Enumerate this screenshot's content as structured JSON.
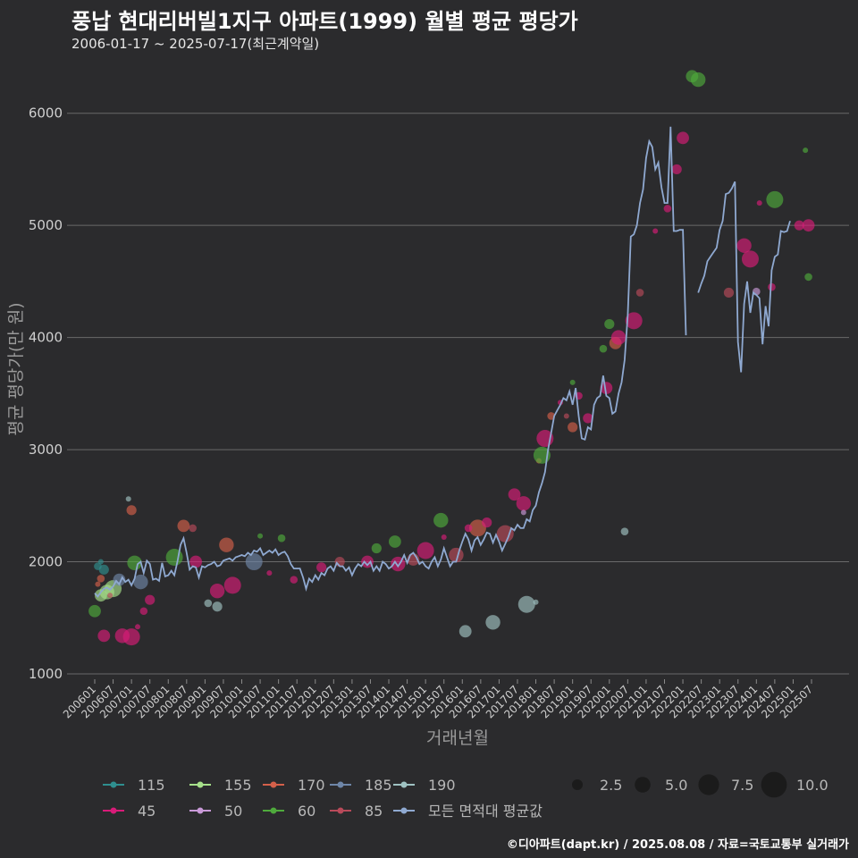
{
  "title": "풍납 현대리버빌1지구 아파트(1999) 월별 평균 평당가",
  "subtitle": "2006-01-17 ~ 2025-07-17(최근계약일)",
  "credit": "©디아파트(dapt.kr) / 2025.08.08 / 자료=국토교통부 실거래가",
  "colors": {
    "background": "#2b2b2d",
    "grid": "#6a6a6a",
    "avg_line": "#8fa9d1"
  },
  "chart_data": {
    "type": "scatter",
    "xlabel": "거래년월",
    "ylabel": "평균 평당가(만 원)",
    "ylim": [
      1000,
      6500
    ],
    "yticks": [
      1000,
      2000,
      3000,
      4000,
      5000,
      6000
    ],
    "xticks": [
      "200601",
      "200607",
      "200701",
      "200707",
      "200801",
      "200807",
      "200901",
      "200907",
      "201001",
      "201007",
      "201101",
      "201107",
      "201201",
      "201207",
      "201301",
      "201307",
      "201401",
      "201407",
      "201501",
      "201507",
      "201601",
      "201607",
      "201701",
      "201707",
      "201801",
      "201807",
      "201901",
      "201907",
      "202001",
      "202007",
      "202101",
      "202107",
      "202201",
      "202207",
      "202301",
      "202307",
      "202401",
      "202407",
      "202501",
      "202507"
    ],
    "size_legend": [
      2.5,
      5.0,
      7.5,
      10.0
    ],
    "series": [
      {
        "name": "115",
        "color": "#2f8f8f",
        "points": [
          [
            "2006-03",
            2000
          ],
          [
            "2006-02",
            1960
          ],
          [
            "2006-04",
            1930
          ]
        ]
      },
      {
        "name": "155",
        "color": "#a6e08a",
        "points": [
          [
            "2006-03",
            1700
          ],
          [
            "2006-05",
            1730
          ],
          [
            "2006-07",
            1760
          ]
        ]
      },
      {
        "name": "170",
        "color": "#d4604a",
        "points": [
          [
            "2006-02",
            1800
          ],
          [
            "2006-03",
            1850
          ],
          [
            "2007-01",
            2460
          ],
          [
            "2008-06",
            2320
          ],
          [
            "2009-08",
            2150
          ],
          [
            "2016-06",
            2300
          ],
          [
            "2018-02",
            2900
          ],
          [
            "2018-06",
            3300
          ],
          [
            "2019-01",
            3200
          ],
          [
            "2020-03",
            3950
          ]
        ]
      },
      {
        "name": "185",
        "color": "#6e86a8",
        "points": [
          [
            "2006-09",
            1840
          ],
          [
            "2007-04",
            1820
          ],
          [
            "2010-05",
            2000
          ]
        ]
      },
      {
        "name": "190",
        "color": "#9fc2c2",
        "points": [
          [
            "2006-12",
            2560
          ],
          [
            "2009-02",
            1630
          ],
          [
            "2009-05",
            1600
          ],
          [
            "2016-02",
            1380
          ],
          [
            "2016-11",
            1460
          ],
          [
            "2017-10",
            1620
          ],
          [
            "2018-01",
            1640
          ],
          [
            "2020-06",
            2270
          ]
        ]
      },
      {
        "name": "45",
        "color": "#d81b78",
        "points": [
          [
            "2006-04",
            1340
          ],
          [
            "2006-10",
            1340
          ],
          [
            "2007-01",
            1330
          ],
          [
            "2007-03",
            1420
          ],
          [
            "2007-05",
            1560
          ],
          [
            "2007-07",
            1660
          ],
          [
            "2008-10",
            2000
          ],
          [
            "2009-05",
            1740
          ],
          [
            "2009-10",
            1790
          ],
          [
            "2010-10",
            1900
          ],
          [
            "2011-06",
            1840
          ],
          [
            "2012-03",
            1950
          ],
          [
            "2013-06",
            2000
          ],
          [
            "2014-04",
            1980
          ],
          [
            "2015-01",
            2100
          ],
          [
            "2015-07",
            2220
          ],
          [
            "2016-03",
            2300
          ],
          [
            "2016-09",
            2350
          ],
          [
            "2017-06",
            2600
          ],
          [
            "2017-09",
            2520
          ],
          [
            "2018-04",
            3100
          ],
          [
            "2018-09",
            3420
          ],
          [
            "2019-03",
            3480
          ],
          [
            "2019-06",
            3280
          ],
          [
            "2019-12",
            3550
          ],
          [
            "2020-04",
            4000
          ],
          [
            "2020-09",
            4150
          ],
          [
            "2021-04",
            4950
          ],
          [
            "2021-08",
            5150
          ],
          [
            "2021-11",
            5500
          ],
          [
            "2022-01",
            5780
          ],
          [
            "2023-09",
            4820
          ],
          [
            "2023-11",
            4700
          ],
          [
            "2024-02",
            5200
          ],
          [
            "2024-06",
            4450
          ],
          [
            "2025-03",
            5000
          ],
          [
            "2025-06",
            5000
          ]
        ]
      },
      {
        "name": "50",
        "color": "#c99ad8",
        "points": [
          [
            "2017-09",
            2440
          ],
          [
            "2024-01",
            4410
          ]
        ]
      },
      {
        "name": "60",
        "color": "#4faa3c",
        "points": [
          [
            "2006-01",
            1560
          ],
          [
            "2007-02",
            1990
          ],
          [
            "2008-03",
            2040
          ],
          [
            "2010-07",
            2230
          ],
          [
            "2011-02",
            2210
          ],
          [
            "2013-09",
            2120
          ],
          [
            "2014-03",
            2180
          ],
          [
            "2015-06",
            2370
          ],
          [
            "2018-03",
            2950
          ],
          [
            "2019-01",
            3600
          ],
          [
            "2019-11",
            3900
          ],
          [
            "2020-01",
            4120
          ],
          [
            "2022-04",
            6330
          ],
          [
            "2022-06",
            6300
          ],
          [
            "2024-07",
            5230
          ],
          [
            "2025-05",
            5670
          ],
          [
            "2025-06",
            4540
          ]
        ]
      },
      {
        "name": "85",
        "color": "#b84a5a",
        "points": [
          [
            "2006-06",
            1700
          ],
          [
            "2008-09",
            2300
          ],
          [
            "2012-09",
            2000
          ],
          [
            "2014-09",
            2020
          ],
          [
            "2015-11",
            2060
          ],
          [
            "2017-03",
            2250
          ],
          [
            "2018-11",
            3300
          ],
          [
            "2020-11",
            4400
          ],
          [
            "2023-04",
            4400
          ]
        ]
      },
      {
        "name": "모든 면적대 평균값",
        "color": "#8fa9d1",
        "points": []
      }
    ],
    "average_line": [
      [
        "2006-01",
        1720
      ],
      [
        "2006-02",
        1690
      ],
      [
        "2006-03",
        1730
      ],
      [
        "2006-04",
        1760
      ],
      [
        "2006-05",
        1770
      ],
      [
        "2006-06",
        1750
      ],
      [
        "2006-07",
        1780
      ],
      [
        "2006-08",
        1830
      ],
      [
        "2006-09",
        1800
      ],
      [
        "2006-10",
        1860
      ],
      [
        "2006-11",
        1820
      ],
      [
        "2006-12",
        1840
      ],
      [
        "2007-01",
        1790
      ],
      [
        "2007-02",
        1850
      ],
      [
        "2007-03",
        1980
      ],
      [
        "2007-04",
        2000
      ],
      [
        "2007-05",
        1900
      ],
      [
        "2007-06",
        2010
      ],
      [
        "2007-07",
        1980
      ],
      [
        "2007-08",
        1840
      ],
      [
        "2007-09",
        1850
      ],
      [
        "2007-10",
        1830
      ],
      [
        "2007-11",
        1990
      ],
      [
        "2007-12",
        1870
      ],
      [
        "2008-01",
        1880
      ],
      [
        "2008-02",
        1920
      ],
      [
        "2008-03",
        1880
      ],
      [
        "2008-04",
        2000
      ],
      [
        "2008-05",
        2150
      ],
      [
        "2008-06",
        2210
      ],
      [
        "2008-07",
        2080
      ],
      [
        "2008-08",
        1930
      ],
      [
        "2008-09",
        1960
      ],
      [
        "2008-10",
        1950
      ],
      [
        "2008-11",
        1860
      ],
      [
        "2008-12",
        1960
      ],
      [
        "2009-01",
        1950
      ],
      [
        "2009-02",
        1970
      ],
      [
        "2009-03",
        1980
      ],
      [
        "2009-04",
        2000
      ],
      [
        "2009-05",
        1960
      ],
      [
        "2009-06",
        1970
      ],
      [
        "2009-07",
        2010
      ],
      [
        "2009-08",
        2020
      ],
      [
        "2009-09",
        2030
      ],
      [
        "2009-10",
        2010
      ],
      [
        "2009-11",
        2040
      ],
      [
        "2009-12",
        2050
      ],
      [
        "2010-01",
        2060
      ],
      [
        "2010-02",
        2050
      ],
      [
        "2010-03",
        2080
      ],
      [
        "2010-04",
        2060
      ],
      [
        "2010-05",
        2100
      ],
      [
        "2010-06",
        2090
      ],
      [
        "2010-07",
        2120
      ],
      [
        "2010-08",
        2060
      ],
      [
        "2010-09",
        2080
      ],
      [
        "2010-10",
        2100
      ],
      [
        "2010-11",
        2080
      ],
      [
        "2010-12",
        2110
      ],
      [
        "2011-01",
        2060
      ],
      [
        "2011-02",
        2080
      ],
      [
        "2011-03",
        2090
      ],
      [
        "2011-04",
        2050
      ],
      [
        "2011-05",
        1980
      ],
      [
        "2011-06",
        1940
      ],
      [
        "2011-07",
        1940
      ],
      [
        "2011-08",
        1940
      ],
      [
        "2011-09",
        1860
      ],
      [
        "2011-10",
        1760
      ],
      [
        "2011-11",
        1850
      ],
      [
        "2011-12",
        1820
      ],
      [
        "2012-01",
        1880
      ],
      [
        "2012-02",
        1840
      ],
      [
        "2012-03",
        1900
      ],
      [
        "2012-04",
        1880
      ],
      [
        "2012-05",
        1940
      ],
      [
        "2012-06",
        1960
      ],
      [
        "2012-07",
        1920
      ],
      [
        "2012-08",
        1990
      ],
      [
        "2012-09",
        1960
      ],
      [
        "2012-10",
        1960
      ],
      [
        "2012-11",
        1920
      ],
      [
        "2012-12",
        1950
      ],
      [
        "2013-01",
        1880
      ],
      [
        "2013-02",
        1940
      ],
      [
        "2013-03",
        1980
      ],
      [
        "2013-04",
        1960
      ],
      [
        "2013-05",
        2000
      ],
      [
        "2013-06",
        1970
      ],
      [
        "2013-07",
        2000
      ],
      [
        "2013-08",
        1920
      ],
      [
        "2013-09",
        1960
      ],
      [
        "2013-10",
        1920
      ],
      [
        "2013-11",
        2000
      ],
      [
        "2013-12",
        1980
      ],
      [
        "2014-01",
        1940
      ],
      [
        "2014-02",
        1960
      ],
      [
        "2014-03",
        2000
      ],
      [
        "2014-04",
        1960
      ],
      [
        "2014-05",
        2000
      ],
      [
        "2014-06",
        2060
      ],
      [
        "2014-07",
        1990
      ],
      [
        "2014-08",
        2060
      ],
      [
        "2014-09",
        2080
      ],
      [
        "2014-10",
        2040
      ],
      [
        "2014-11",
        1980
      ],
      [
        "2014-12",
        2000
      ],
      [
        "2015-01",
        1960
      ],
      [
        "2015-02",
        1940
      ],
      [
        "2015-03",
        2000
      ],
      [
        "2015-04",
        2040
      ],
      [
        "2015-05",
        1960
      ],
      [
        "2015-06",
        2020
      ],
      [
        "2015-07",
        2120
      ],
      [
        "2015-08",
        2040
      ],
      [
        "2015-09",
        1960
      ],
      [
        "2015-10",
        2000
      ],
      [
        "2015-11",
        2000
      ],
      [
        "2015-12",
        2100
      ],
      [
        "2016-01",
        2180
      ],
      [
        "2016-02",
        2250
      ],
      [
        "2016-03",
        2200
      ],
      [
        "2016-04",
        2100
      ],
      [
        "2016-05",
        2190
      ],
      [
        "2016-06",
        2220
      ],
      [
        "2016-07",
        2150
      ],
      [
        "2016-08",
        2200
      ],
      [
        "2016-09",
        2260
      ],
      [
        "2016-10",
        2250
      ],
      [
        "2016-11",
        2170
      ],
      [
        "2016-12",
        2240
      ],
      [
        "2017-01",
        2180
      ],
      [
        "2017-02",
        2100
      ],
      [
        "2017-03",
        2160
      ],
      [
        "2017-04",
        2220
      ],
      [
        "2017-05",
        2300
      ],
      [
        "2017-06",
        2280
      ],
      [
        "2017-07",
        2330
      ],
      [
        "2017-08",
        2300
      ],
      [
        "2017-09",
        2300
      ],
      [
        "2017-10",
        2380
      ],
      [
        "2017-11",
        2360
      ],
      [
        "2017-12",
        2460
      ],
      [
        "2018-01",
        2500
      ],
      [
        "2018-02",
        2620
      ],
      [
        "2018-03",
        2700
      ],
      [
        "2018-04",
        2800
      ],
      [
        "2018-05",
        3000
      ],
      [
        "2018-06",
        3150
      ],
      [
        "2018-07",
        3300
      ],
      [
        "2018-08",
        3350
      ],
      [
        "2018-09",
        3400
      ],
      [
        "2018-10",
        3460
      ],
      [
        "2018-11",
        3440
      ],
      [
        "2018-12",
        3520
      ],
      [
        "2019-01",
        3400
      ],
      [
        "2019-02",
        3550
      ],
      [
        "2019-03",
        3300
      ],
      [
        "2019-04",
        3100
      ],
      [
        "2019-05",
        3090
      ],
      [
        "2019-06",
        3200
      ],
      [
        "2019-07",
        3180
      ],
      [
        "2019-08",
        3400
      ],
      [
        "2019-09",
        3460
      ],
      [
        "2019-10",
        3480
      ],
      [
        "2019-11",
        3660
      ],
      [
        "2019-12",
        3480
      ],
      [
        "2020-01",
        3460
      ],
      [
        "2020-02",
        3320
      ],
      [
        "2020-03",
        3340
      ],
      [
        "2020-04",
        3500
      ],
      [
        "2020-05",
        3600
      ],
      [
        "2020-06",
        3800
      ],
      [
        "2020-07",
        4200
      ],
      [
        "2020-08",
        4900
      ],
      [
        "2020-09",
        4920
      ],
      [
        "2020-10",
        5000
      ],
      [
        "2020-11",
        5200
      ],
      [
        "2020-12",
        5320
      ],
      [
        "2021-01",
        5600
      ],
      [
        "2021-02",
        5750
      ],
      [
        "2021-03",
        5700
      ],
      [
        "2021-04",
        5500
      ],
      [
        "2021-05",
        5560
      ],
      [
        "2021-06",
        5340
      ],
      [
        "2021-07",
        5200
      ],
      [
        "2021-08",
        5200
      ],
      [
        "2021-09",
        5880
      ],
      [
        "2021-10",
        4950
      ],
      [
        "2021-11",
        4950
      ],
      [
        "2021-12",
        4960
      ],
      [
        "2022-01",
        4960
      ],
      [
        "2022-02",
        4020
      ],
      [
        "2022-03",
        null
      ],
      [
        "2022-04",
        null
      ],
      [
        "2022-05",
        null
      ],
      [
        "2022-06",
        4400
      ],
      [
        "2022-07",
        4480
      ],
      [
        "2022-08",
        4550
      ],
      [
        "2022-09",
        4680
      ],
      [
        "2022-10",
        4720
      ],
      [
        "2022-11",
        4760
      ],
      [
        "2022-12",
        4800
      ],
      [
        "2023-01",
        4960
      ],
      [
        "2023-02",
        5040
      ],
      [
        "2023-03",
        5280
      ],
      [
        "2023-04",
        5290
      ],
      [
        "2023-05",
        5330
      ],
      [
        "2023-06",
        5390
      ],
      [
        "2023-07",
        3960
      ],
      [
        "2023-08",
        3690
      ],
      [
        "2023-09",
        4300
      ],
      [
        "2023-10",
        4500
      ],
      [
        "2023-11",
        4220
      ],
      [
        "2023-12",
        4400
      ],
      [
        "2024-01",
        4380
      ],
      [
        "2024-02",
        4350
      ],
      [
        "2024-03",
        3940
      ],
      [
        "2024-04",
        4280
      ],
      [
        "2024-05",
        4100
      ],
      [
        "2024-06",
        4600
      ],
      [
        "2024-07",
        4720
      ],
      [
        "2024-08",
        4740
      ],
      [
        "2024-09",
        4950
      ],
      [
        "2024-10",
        4940
      ],
      [
        "2024-11",
        4950
      ],
      [
        "2024-12",
        5040
      ]
    ]
  }
}
